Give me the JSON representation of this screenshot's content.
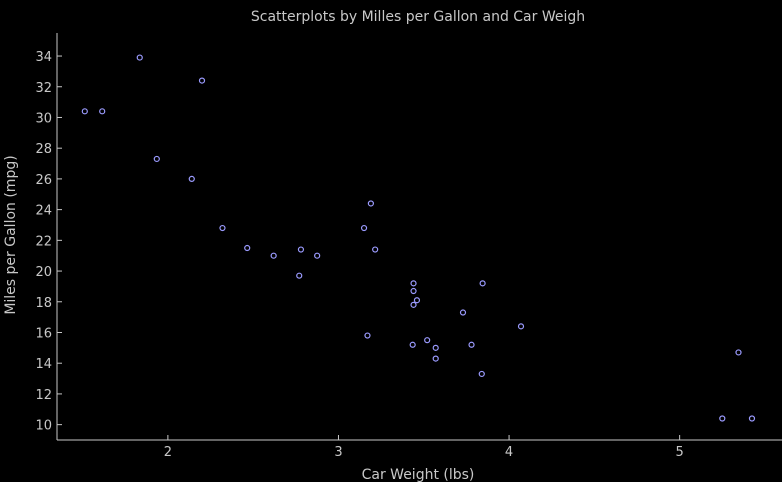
{
  "chart_data": {
    "type": "scatter",
    "title": "Scatterplots by Milles per Gallon and Car Weigh",
    "xlabel": "Car Weight (lbs)",
    "ylabel": "Miles per Gallon (mpg)",
    "xlim": [
      1.35,
      5.6
    ],
    "ylim": [
      9.0,
      35.5
    ],
    "xticks": [
      2,
      3,
      4,
      5
    ],
    "yticks": [
      10,
      12,
      14,
      16,
      18,
      20,
      22,
      24,
      26,
      28,
      30,
      32,
      34
    ],
    "grid": false,
    "colors": {
      "background": "#000000",
      "axis": "#c8c8c8",
      "text": "#c8c8c8",
      "marker": "#9b9bff"
    },
    "series": [
      {
        "points": [
          [
            2.62,
            21.0
          ],
          [
            2.875,
            21.0
          ],
          [
            2.32,
            22.8
          ],
          [
            3.215,
            21.4
          ],
          [
            3.44,
            18.7
          ],
          [
            3.46,
            18.1
          ],
          [
            3.57,
            14.3
          ],
          [
            3.19,
            24.4
          ],
          [
            3.15,
            22.8
          ],
          [
            3.44,
            19.2
          ],
          [
            3.44,
            17.8
          ],
          [
            4.07,
            16.4
          ],
          [
            3.73,
            17.3
          ],
          [
            3.78,
            15.2
          ],
          [
            5.25,
            10.4
          ],
          [
            5.424,
            10.4
          ],
          [
            5.345,
            14.7
          ],
          [
            2.2,
            32.4
          ],
          [
            1.615,
            30.4
          ],
          [
            1.835,
            33.9
          ],
          [
            2.465,
            21.5
          ],
          [
            3.52,
            15.5
          ],
          [
            3.435,
            15.2
          ],
          [
            3.84,
            13.3
          ],
          [
            3.845,
            19.2
          ],
          [
            1.935,
            27.3
          ],
          [
            2.14,
            26.0
          ],
          [
            1.513,
            30.4
          ],
          [
            3.17,
            15.8
          ],
          [
            2.77,
            19.7
          ],
          [
            3.57,
            15.0
          ],
          [
            2.78,
            21.4
          ]
        ]
      }
    ]
  }
}
